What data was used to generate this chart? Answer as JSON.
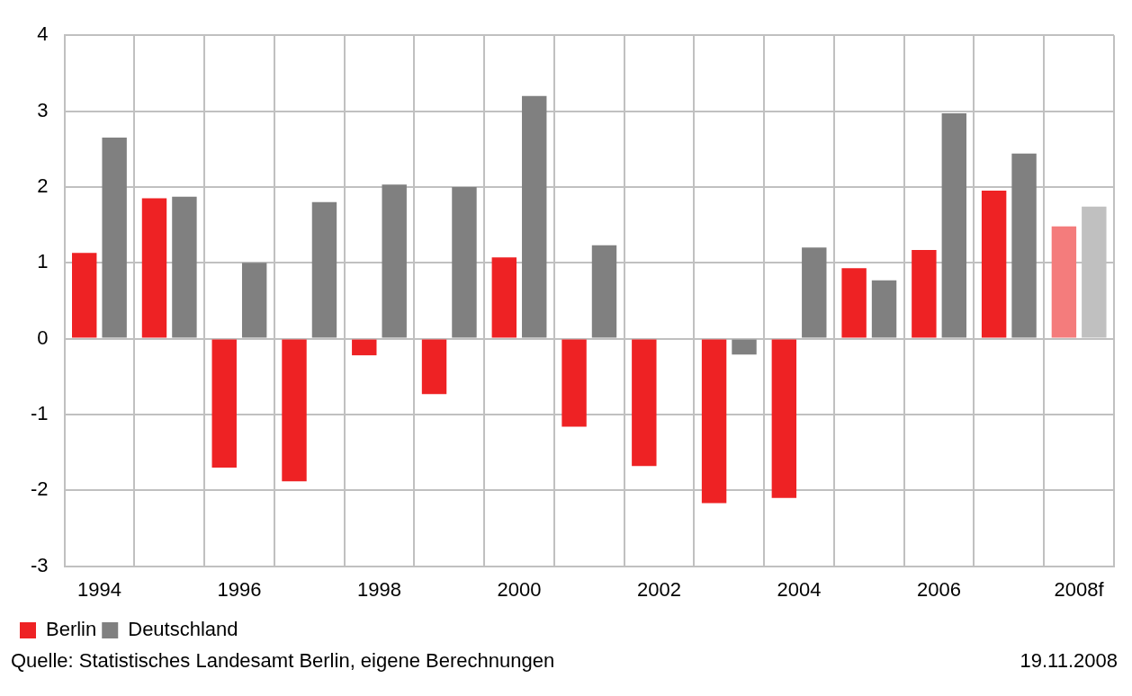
{
  "chart_data": {
    "type": "bar",
    "categories": [
      "1994",
      null,
      "1996",
      null,
      "1998",
      null,
      "2000",
      null,
      "2002",
      null,
      "2004",
      null,
      "2006",
      null,
      "2008f"
    ],
    "series": [
      {
        "name": "Berlin",
        "color": "#ee2224",
        "colors": [
          "#ee2224",
          "#ee2224",
          "#ee2224",
          "#ee2224",
          "#ee2224",
          "#ee2224",
          "#ee2224",
          "#ee2224",
          "#ee2224",
          "#ee2224",
          "#ee2224",
          "#ee2224",
          "#ee2224",
          "#ee2224",
          "#f47c7c"
        ],
        "values": [
          1.13,
          1.85,
          -1.7,
          -1.88,
          -0.22,
          -0.73,
          1.07,
          -1.16,
          -1.68,
          -2.17,
          -2.1,
          0.93,
          1.17,
          1.95,
          1.48
        ]
      },
      {
        "name": "Deutschland",
        "color": "#808080",
        "colors": [
          "#808080",
          "#808080",
          "#808080",
          "#808080",
          "#808080",
          "#808080",
          "#808080",
          "#808080",
          "#808080",
          "#808080",
          "#808080",
          "#808080",
          "#808080",
          "#808080",
          "#c0c0c0"
        ],
        "values": [
          2.65,
          1.87,
          1.0,
          1.8,
          2.03,
          2.0,
          3.2,
          1.23,
          0,
          -0.21,
          1.2,
          0.77,
          2.97,
          2.44,
          1.74
        ]
      }
    ],
    "ylim": [
      -3,
      4
    ],
    "yticks": [
      -3,
      -2,
      -1,
      0,
      1,
      2,
      3,
      4
    ],
    "grid": true,
    "legend": "bottom left",
    "annotations": [
      "Quelle: Statistisches Landesamt Berlin, eigene Berechnungen",
      "19.11.2008"
    ]
  }
}
